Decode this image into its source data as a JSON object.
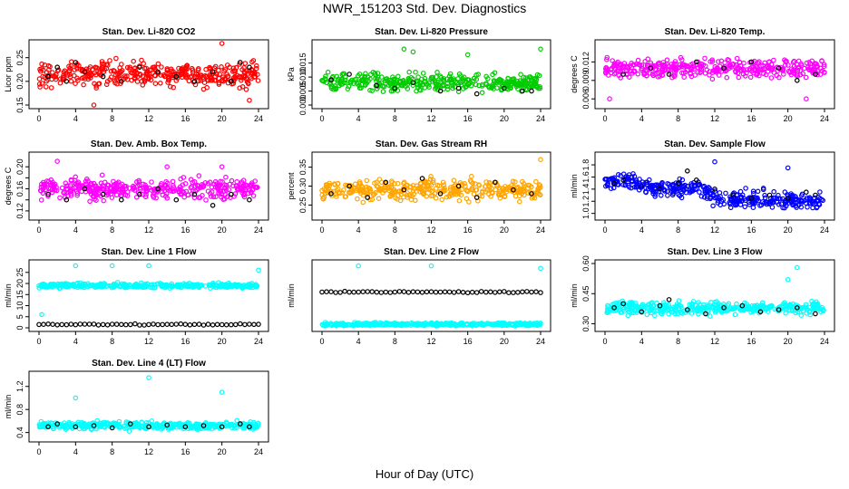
{
  "title": "NWR_151203  Std. Dev. Diagnostics",
  "xlabel": "Hour of Day (UTC)",
  "chart_data": [
    {
      "type": "scatter",
      "title": "Stan. Dev. Li-820 CO2",
      "ylabel": "Licor ppm",
      "color": "#ff0000",
      "xlim": [
        0,
        24
      ],
      "ylim": [
        0.15,
        0.28
      ],
      "xticks": [
        "0",
        "4",
        "8",
        "12",
        "16",
        "20",
        "24"
      ],
      "yticks": [
        0.15,
        0.2,
        0.25
      ],
      "ytick_labels": [
        "0.15",
        "0.20",
        "0.25"
      ],
      "series": [
        {
          "name": "flagged",
          "color": "#000000",
          "x": [
            1,
            2,
            3,
            4,
            5,
            7,
            9,
            11,
            13,
            15,
            17,
            19,
            21,
            22,
            23
          ],
          "y": [
            0.21,
            0.23,
            0.2,
            0.24,
            0.22,
            0.21,
            0.2,
            0.23,
            0.22,
            0.21,
            0.2,
            0.22,
            0.2,
            0.24,
            0.23
          ]
        }
      ],
      "base": 0.215,
      "spread": 0.025,
      "outliers": [
        {
          "x": 6,
          "y": 0.15
        },
        {
          "x": 20,
          "y": 0.28
        },
        {
          "x": 23,
          "y": 0.16
        }
      ]
    },
    {
      "type": "scatter",
      "title": "Stan. Dev. Li-820 Pressure",
      "ylabel": "kPa",
      "color": "#00cc00",
      "xlim": [
        0,
        24
      ],
      "ylim": [
        0,
        0.022
      ],
      "xticks": [
        "0",
        "4",
        "8",
        "12",
        "16",
        "20",
        "24"
      ],
      "yticks": [
        0,
        0.005,
        0.01,
        0.015
      ],
      "ytick_labels": [
        "0.000",
        "0.005",
        "0.010",
        "0.015"
      ],
      "series": [
        {
          "name": "flagged",
          "color": "#000000",
          "x": [
            1,
            3,
            6,
            8,
            10,
            13,
            15,
            17,
            20,
            22,
            23
          ],
          "y": [
            0.009,
            0.011,
            0.007,
            0.006,
            0.008,
            0.005,
            0.006,
            0.004,
            0.006,
            0.005,
            0.005
          ]
        }
      ],
      "base": 0.008,
      "spread": 0.003,
      "outliers": [
        {
          "x": 9,
          "y": 0.02
        },
        {
          "x": 10,
          "y": 0.019
        },
        {
          "x": 24,
          "y": 0.02
        },
        {
          "x": 16,
          "y": 0.018
        }
      ]
    },
    {
      "type": "scatter",
      "title": "Stan. Dev. Li-820 Temp.",
      "ylabel": "degrees C",
      "color": "#ff00ff",
      "xlim": [
        0,
        24
      ],
      "ylim": [
        0.005,
        0.015
      ],
      "xticks": [
        "0",
        "4",
        "8",
        "12",
        "16",
        "20",
        "24"
      ],
      "yticks": [
        0.006,
        0.009,
        0.012
      ],
      "ytick_labels": [
        "0.006",
        "0.009",
        "0.012"
      ],
      "series": [
        {
          "name": "flagged",
          "color": "#000000",
          "x": [
            2,
            5,
            7,
            10,
            13,
            16,
            19,
            21,
            23
          ],
          "y": [
            0.01,
            0.011,
            0.01,
            0.012,
            0.011,
            0.012,
            0.011,
            0.009,
            0.01
          ]
        }
      ],
      "base": 0.011,
      "spread": 0.0015,
      "outliers": [
        {
          "x": 0.5,
          "y": 0.006
        },
        {
          "x": 22,
          "y": 0.006
        }
      ]
    },
    {
      "type": "scatter",
      "title": "Stan. Dev. Amb. Box Temp.",
      "ylabel": "degrees C",
      "color": "#ff00ff",
      "xlim": [
        0,
        24
      ],
      "ylim": [
        0.11,
        0.22
      ],
      "xticks": [
        "0",
        "4",
        "8",
        "12",
        "16",
        "20",
        "24"
      ],
      "yticks": [
        0.12,
        0.14,
        0.16,
        0.18,
        0.2
      ],
      "ytick_labels": [
        "0.12",
        "",
        "0.16",
        "",
        "0.20"
      ],
      "series": [
        {
          "name": "flagged",
          "color": "#000000",
          "x": [
            1,
            3,
            5,
            7,
            9,
            11,
            13,
            15,
            17,
            19,
            21,
            23
          ],
          "y": [
            0.15,
            0.14,
            0.16,
            0.15,
            0.14,
            0.15,
            0.16,
            0.14,
            0.15,
            0.13,
            0.15,
            0.14
          ]
        }
      ],
      "base": 0.16,
      "spread": 0.017,
      "outliers": [
        {
          "x": 2,
          "y": 0.21
        },
        {
          "x": 14,
          "y": 0.2
        },
        {
          "x": 20,
          "y": 0.2
        }
      ]
    },
    {
      "type": "scatter",
      "title": "Stan. Dev. Gas Stream RH",
      "ylabel": "percent",
      "color": "#ffa500",
      "xlim": [
        0,
        24
      ],
      "ylim": [
        0.22,
        0.38
      ],
      "xticks": [
        "0",
        "4",
        "8",
        "12",
        "16",
        "20",
        "24"
      ],
      "yticks": [
        0.25,
        0.3,
        0.35
      ],
      "ytick_labels": [
        "0.25",
        "0.30",
        "0.35"
      ],
      "series": [
        {
          "name": "flagged",
          "color": "#000000",
          "x": [
            1,
            3,
            5,
            7,
            9,
            11,
            13,
            15,
            17,
            19,
            21,
            23
          ],
          "y": [
            0.28,
            0.3,
            0.27,
            0.31,
            0.29,
            0.32,
            0.28,
            0.3,
            0.27,
            0.31,
            0.29,
            0.28
          ]
        }
      ],
      "base": 0.29,
      "spread": 0.025,
      "outliers": [
        {
          "x": 24,
          "y": 0.37
        }
      ]
    },
    {
      "type": "scatter",
      "title": "Stan. Dev. Sample Flow",
      "ylabel": "ml/min",
      "color": "#0000ff",
      "xlim": [
        0,
        24
      ],
      "ylim": [
        0.95,
        1.95
      ],
      "xticks": [
        "0",
        "4",
        "8",
        "12",
        "16",
        "20",
        "24"
      ],
      "yticks": [
        1.0,
        1.2,
        1.4,
        1.6,
        1.8
      ],
      "ytick_labels": [
        "1.0",
        "1.2",
        "1.4",
        "1.6",
        "1.8"
      ],
      "series": [
        {
          "name": "flagged",
          "color": "#000000",
          "x": [
            1,
            2,
            4,
            6,
            8,
            9,
            10,
            12,
            14,
            16,
            18,
            20,
            22,
            23
          ],
          "y": [
            1.5,
            1.55,
            1.45,
            1.4,
            1.5,
            1.7,
            1.55,
            1.4,
            1.3,
            1.25,
            1.3,
            1.25,
            1.35,
            1.3
          ]
        }
      ],
      "trend": [
        [
          0,
          1.5
        ],
        [
          2,
          1.55
        ],
        [
          6,
          1.4
        ],
        [
          10,
          1.45
        ],
        [
          12,
          1.25
        ],
        [
          24,
          1.2
        ]
      ],
      "spread": 0.13,
      "outliers": [
        {
          "x": 12,
          "y": 1.85
        },
        {
          "x": 20,
          "y": 1.75
        }
      ]
    },
    {
      "type": "scatter",
      "title": "Stan. Dev. Line 1 Flow",
      "ylabel": "ml/min",
      "color": "#00ffff",
      "xlim": [
        0,
        24
      ],
      "ylim": [
        0,
        29
      ],
      "xticks": [
        "0",
        "4",
        "8",
        "12",
        "16",
        "20",
        "24"
      ],
      "yticks": [
        0,
        5,
        10,
        15,
        20,
        25
      ],
      "ytick_labels": [
        "0",
        "5",
        "10",
        "15",
        "20",
        "25"
      ],
      "series": [
        {
          "name": "line-1",
          "color": "#000000",
          "y_const": 1.5
        }
      ],
      "base": 19,
      "spread": 1.0,
      "outliers": [
        {
          "x": 4,
          "y": 28
        },
        {
          "x": 8,
          "y": 28
        },
        {
          "x": 12,
          "y": 28
        },
        {
          "x": 24,
          "y": 26
        },
        {
          "x": 0.3,
          "y": 6
        }
      ]
    },
    {
      "type": "scatter",
      "title": "Stan. Dev. Line 2 Flow",
      "ylabel": "ml/min",
      "color": "#00ffff",
      "xlim": [
        0,
        24
      ],
      "ylim": [
        0,
        27
      ],
      "xticks": [
        "0",
        "4",
        "8",
        "12",
        "16",
        "20",
        "24"
      ],
      "yticks": [],
      "ytick_labels": [],
      "series": [
        {
          "name": "line-2",
          "color": "#000000",
          "y_const": 15
        }
      ],
      "base": 1.5,
      "spread": 0.6,
      "outliers": [
        {
          "x": 4,
          "y": 26
        },
        {
          "x": 12,
          "y": 26
        },
        {
          "x": 24,
          "y": 25
        }
      ]
    },
    {
      "type": "scatter",
      "title": "Stan. Dev. Line 3 Flow",
      "ylabel": "ml/min",
      "color": "#00ffff",
      "xlim": [
        0,
        24
      ],
      "ylim": [
        0.28,
        0.6
      ],
      "xticks": [
        "0",
        "4",
        "8",
        "12",
        "16",
        "20",
        "24"
      ],
      "yticks": [
        0.3,
        0.45,
        0.6
      ],
      "ytick_labels": [
        "0.30",
        "0.45",
        "0.60"
      ],
      "series": [
        {
          "name": "flagged",
          "color": "#000000",
          "x": [
            1,
            2,
            4,
            6,
            7,
            9,
            11,
            13,
            15,
            17,
            19,
            21,
            23
          ],
          "y": [
            0.38,
            0.4,
            0.36,
            0.39,
            0.42,
            0.37,
            0.35,
            0.38,
            0.39,
            0.36,
            0.37,
            0.38,
            0.35
          ]
        }
      ],
      "base": 0.38,
      "spread": 0.03,
      "outliers": [
        {
          "x": 21,
          "y": 0.58
        },
        {
          "x": 20,
          "y": 0.52
        }
      ]
    },
    {
      "type": "scatter",
      "title": "Stan. Dev. Line 4 (LT) Flow",
      "ylabel": "ml/min",
      "color": "#00ffff",
      "xlim": [
        0,
        24
      ],
      "ylim": [
        0.3,
        1.4
      ],
      "xticks": [
        "0",
        "4",
        "8",
        "12",
        "16",
        "20",
        "24"
      ],
      "yticks": [
        0.4,
        0.8,
        1.2
      ],
      "ytick_labels": [
        "0.4",
        "0.8",
        "1.2"
      ],
      "series": [
        {
          "name": "flagged",
          "color": "#000000",
          "x": [
            1,
            2,
            4,
            6,
            8,
            10,
            12,
            14,
            16,
            18,
            20,
            22,
            23
          ],
          "y": [
            0.5,
            0.55,
            0.5,
            0.52,
            0.48,
            0.55,
            0.5,
            0.53,
            0.5,
            0.52,
            0.5,
            0.55,
            0.5
          ]
        }
      ],
      "base": 0.52,
      "spread": 0.06,
      "outliers": [
        {
          "x": 4,
          "y": 1.0
        },
        {
          "x": 12,
          "y": 1.35
        },
        {
          "x": 20,
          "y": 1.1
        }
      ]
    }
  ]
}
